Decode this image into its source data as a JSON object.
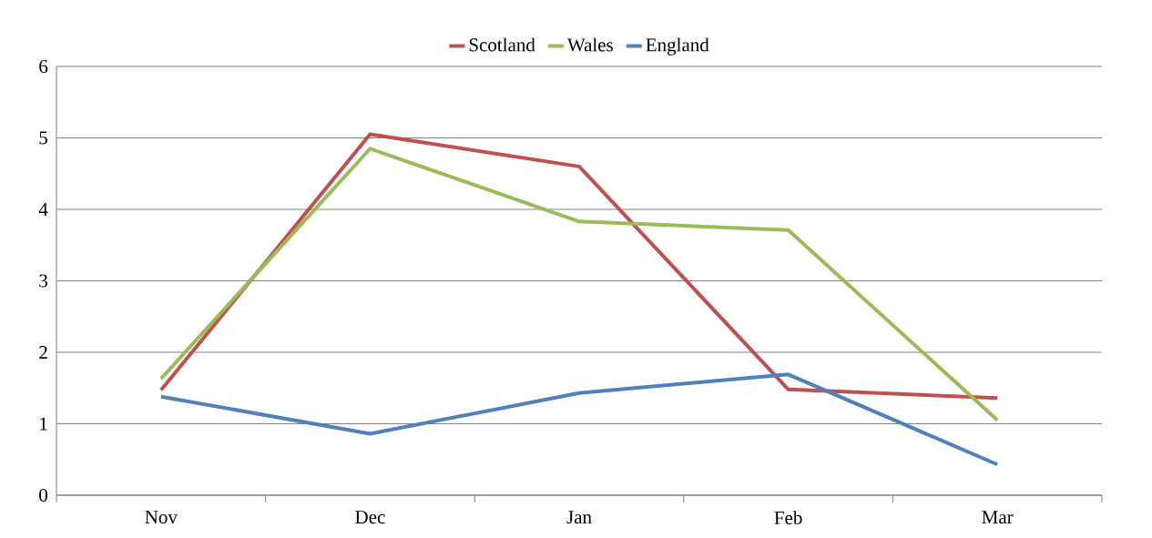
{
  "chart_data": {
    "type": "line",
    "categories": [
      "Nov",
      "Dec",
      "Jan",
      "Feb",
      "Mar"
    ],
    "series": [
      {
        "name": "Scotland",
        "color": "#c0504d",
        "values": [
          1.47,
          5.05,
          4.6,
          1.48,
          1.36
        ]
      },
      {
        "name": "Wales",
        "color": "#9bbb59",
        "values": [
          1.63,
          4.85,
          3.83,
          3.71,
          1.05
        ]
      },
      {
        "name": "England",
        "color": "#4f81bd",
        "values": [
          1.38,
          0.86,
          1.43,
          1.69,
          0.43
        ]
      }
    ],
    "ylim": [
      0,
      6
    ],
    "yticks": [
      0,
      1,
      2,
      3,
      4,
      5,
      6
    ],
    "grid": "y",
    "legend": "top",
    "marker": "none",
    "line_style": "solid"
  }
}
